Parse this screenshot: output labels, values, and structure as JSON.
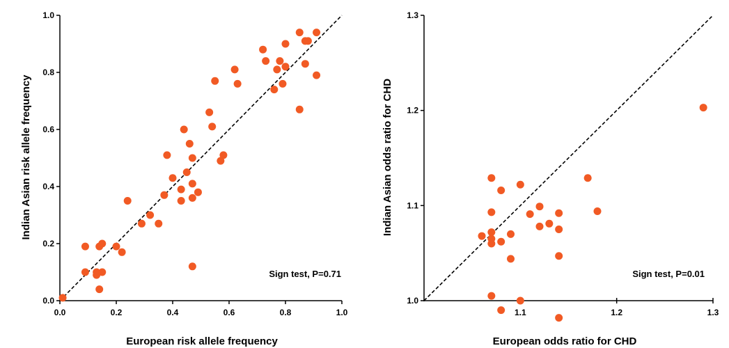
{
  "colors": {
    "point": "#f15a24",
    "axis": "#000000",
    "diagonal": "#000000"
  },
  "chart_data": [
    {
      "type": "scatter",
      "xlabel": "European risk allele frequency",
      "ylabel": "Indian Asian risk allele frequency",
      "xlim": [
        0,
        1.0
      ],
      "ylim": [
        0,
        1.0
      ],
      "xticks": [
        "0.0",
        "0.2",
        "0.4",
        "0.6",
        "0.8",
        "1.0"
      ],
      "yticks": [
        "0.0",
        "0.2",
        "0.4",
        "0.6",
        "0.8",
        "1.0"
      ],
      "grid": false,
      "reference_line": "y = x",
      "annotation": "Sign test, P=0.71",
      "points": [
        [
          0.01,
          0.01
        ],
        [
          0.09,
          0.19
        ],
        [
          0.09,
          0.1
        ],
        [
          0.13,
          0.09
        ],
        [
          0.13,
          0.1
        ],
        [
          0.14,
          0.19
        ],
        [
          0.15,
          0.2
        ],
        [
          0.15,
          0.1
        ],
        [
          0.14,
          0.04
        ],
        [
          0.2,
          0.19
        ],
        [
          0.22,
          0.17
        ],
        [
          0.24,
          0.35
        ],
        [
          0.29,
          0.27
        ],
        [
          0.32,
          0.3
        ],
        [
          0.35,
          0.27
        ],
        [
          0.37,
          0.37
        ],
        [
          0.38,
          0.51
        ],
        [
          0.4,
          0.43
        ],
        [
          0.43,
          0.39
        ],
        [
          0.43,
          0.35
        ],
        [
          0.44,
          0.6
        ],
        [
          0.45,
          0.45
        ],
        [
          0.46,
          0.55
        ],
        [
          0.47,
          0.5
        ],
        [
          0.47,
          0.41
        ],
        [
          0.47,
          0.36
        ],
        [
          0.49,
          0.38
        ],
        [
          0.47,
          0.12
        ],
        [
          0.53,
          0.66
        ],
        [
          0.54,
          0.61
        ],
        [
          0.55,
          0.77
        ],
        [
          0.57,
          0.49
        ],
        [
          0.58,
          0.51
        ],
        [
          0.62,
          0.81
        ],
        [
          0.63,
          0.76
        ],
        [
          0.72,
          0.88
        ],
        [
          0.73,
          0.84
        ],
        [
          0.76,
          0.74
        ],
        [
          0.77,
          0.81
        ],
        [
          0.78,
          0.84
        ],
        [
          0.79,
          0.76
        ],
        [
          0.8,
          0.9
        ],
        [
          0.8,
          0.82
        ],
        [
          0.85,
          0.94
        ],
        [
          0.85,
          0.67
        ],
        [
          0.87,
          0.83
        ],
        [
          0.87,
          0.91
        ],
        [
          0.88,
          0.91
        ],
        [
          0.91,
          0.94
        ],
        [
          0.91,
          0.79
        ]
      ]
    },
    {
      "type": "scatter",
      "xlabel": "European odds ratio for CHD",
      "ylabel": "Indian Asian odds ratio for CHD",
      "xlim": [
        1.0,
        1.3
      ],
      "ylim": [
        1.0,
        1.3
      ],
      "xticks": [
        "1.1",
        "1.2",
        "1.3"
      ],
      "yticks": [
        "1.0",
        "1.1",
        "1.2",
        "1.3"
      ],
      "grid": false,
      "reference_line": "y = x",
      "annotation": "Sign test, P=0.01",
      "points": [
        [
          1.06,
          1.068
        ],
        [
          1.07,
          1.129
        ],
        [
          1.07,
          1.093
        ],
        [
          1.07,
          1.072
        ],
        [
          1.07,
          1.065
        ],
        [
          1.07,
          1.06
        ],
        [
          1.07,
          1.005
        ],
        [
          1.08,
          1.116
        ],
        [
          1.08,
          1.062
        ],
        [
          1.08,
          0.99
        ],
        [
          1.09,
          1.07
        ],
        [
          1.09,
          1.044
        ],
        [
          1.1,
          1.122
        ],
        [
          1.1,
          1.0
        ],
        [
          1.11,
          1.091
        ],
        [
          1.12,
          1.099
        ],
        [
          1.12,
          1.078
        ],
        [
          1.13,
          1.081
        ],
        [
          1.14,
          1.092
        ],
        [
          1.14,
          1.075
        ],
        [
          1.14,
          1.047
        ],
        [
          1.14,
          0.982
        ],
        [
          1.17,
          1.129
        ],
        [
          1.18,
          1.094
        ],
        [
          1.29,
          1.203
        ]
      ]
    }
  ]
}
